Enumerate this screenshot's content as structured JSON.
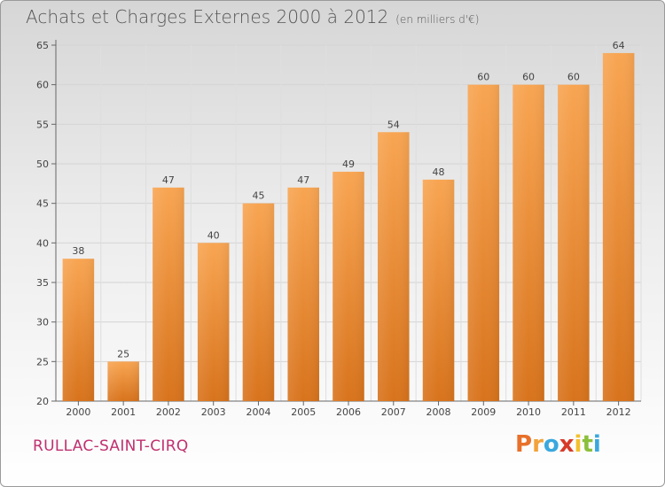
{
  "title": "Achats et Charges Externes 2000 à 2012",
  "subtitle": "(en milliers d'€)",
  "commune": "RULLAC-SAINT-CIRQ",
  "logo": {
    "letters": [
      "P",
      "r",
      "o",
      "x",
      "i",
      "t",
      "i"
    ],
    "colors": [
      "#e8702a",
      "#f2a33a",
      "#3aa8de",
      "#d63a2a",
      "#f2c12e",
      "#8bbf3a",
      "#3aa8de"
    ]
  },
  "colors": {
    "bar_light": "#f8a552",
    "bar_dark": "#d8731c",
    "title": "#555555",
    "commune": "#c0306f"
  },
  "chart_data": {
    "type": "bar",
    "categories": [
      "2000",
      "2001",
      "2002",
      "2003",
      "2004",
      "2005",
      "2006",
      "2007",
      "2008",
      "2009",
      "2010",
      "2011",
      "2012"
    ],
    "values": [
      38,
      25,
      47,
      40,
      45,
      47,
      49,
      54,
      48,
      60,
      60,
      60,
      64
    ],
    "ylim": [
      20,
      65
    ],
    "yticks": [
      20,
      25,
      30,
      35,
      40,
      45,
      50,
      55,
      60,
      65
    ],
    "grid": true
  }
}
